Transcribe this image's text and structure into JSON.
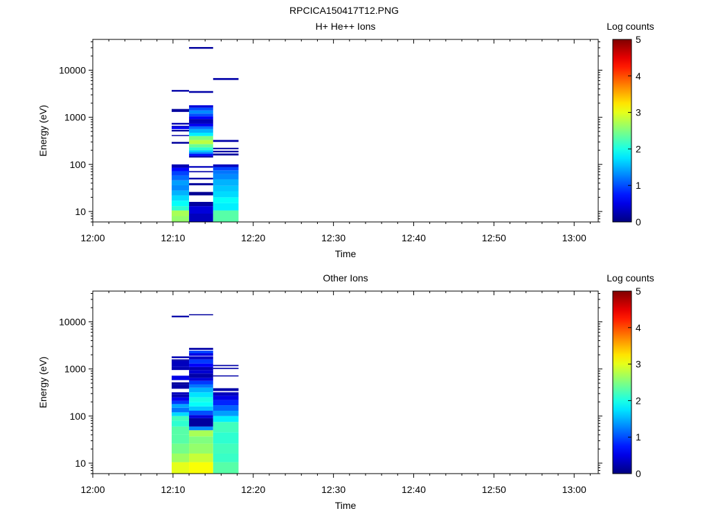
{
  "figure_title": "RPCICA150417T12.PNG",
  "chart_data": [
    {
      "type": "heatmap",
      "title": "H+ He++ Ions",
      "xlabel": "Time",
      "ylabel": "Energy (eV)",
      "x_ticks": [
        "12:00",
        "12:10",
        "12:20",
        "12:30",
        "12:40",
        "12:50",
        "13:00"
      ],
      "xlim": [
        "12:00",
        "13:03"
      ],
      "y_scale": "log",
      "y_ticks": [
        10,
        100,
        1000,
        10000
      ],
      "ylim": [
        6,
        45000
      ],
      "colorbar": {
        "label": "Log counts",
        "range": [
          0,
          5
        ],
        "ticks": [
          0,
          1,
          2,
          3,
          4,
          5
        ]
      },
      "time_bins": [
        {
          "start": "12:09:50",
          "end": "12:12:00",
          "cells": [
            [
              6,
              8,
              2.6
            ],
            [
              8,
              10.5,
              2.7
            ],
            [
              10.5,
              13,
              2.1
            ],
            [
              13,
              17,
              1.9
            ],
            [
              17,
              22,
              1.7
            ],
            [
              22,
              28,
              1.5
            ],
            [
              28,
              36,
              1.3
            ],
            [
              36,
              46,
              1.4
            ],
            [
              46,
              58,
              1.15
            ],
            [
              58,
              72,
              0.95
            ],
            [
              72,
              85,
              0.65
            ],
            [
              85,
              100,
              0.25
            ],
            [
              275,
              300,
              0.15
            ],
            [
              400,
              420,
              0.2
            ],
            [
              500,
              540,
              0.15
            ],
            [
              560,
              620,
              0.6
            ],
            [
              620,
              660,
              0.35
            ],
            [
              700,
              760,
              0.25
            ],
            [
              1300,
              1500,
              0.15
            ],
            [
              3500,
              3800,
              0.2
            ]
          ]
        },
        {
          "start": "12:12:00",
          "end": "12:15:00",
          "cells": [
            [
              6,
              9,
              0.3
            ],
            [
              9,
              13,
              0.45
            ],
            [
              13,
              16,
              0.15
            ],
            [
              22,
              26,
              0.1
            ],
            [
              36,
              40,
              0.15
            ],
            [
              48,
              52,
              0.2
            ],
            [
              68,
              72,
              0.2
            ],
            [
              85,
              92,
              0.3
            ],
            [
              140,
              150,
              0.15
            ],
            [
              150,
              165,
              0.6
            ],
            [
              165,
              180,
              1.15
            ],
            [
              180,
              200,
              1.6
            ],
            [
              200,
              230,
              2.1
            ],
            [
              230,
              270,
              2.4
            ],
            [
              270,
              330,
              2.8
            ],
            [
              330,
              400,
              2.5
            ],
            [
              400,
              470,
              1.8
            ],
            [
              470,
              560,
              1.5
            ],
            [
              560,
              640,
              1.15
            ],
            [
              640,
              730,
              0.55
            ],
            [
              730,
              820,
              0.3
            ],
            [
              820,
              920,
              0.25
            ],
            [
              920,
              1050,
              0.6
            ],
            [
              1050,
              1200,
              1.0
            ],
            [
              1200,
              1400,
              1.3
            ],
            [
              1400,
              1600,
              1.0
            ],
            [
              1600,
              1800,
              0.45
            ],
            [
              3300,
              3600,
              0.2
            ],
            [
              28500,
              31000,
              0.15
            ]
          ]
        },
        {
          "start": "12:15:00",
          "end": "12:18:10",
          "cells": [
            [
              6,
              10.5,
              2.3
            ],
            [
              10.5,
              15,
              1.8
            ],
            [
              15,
              20,
              1.9
            ],
            [
              20,
              27,
              1.7
            ],
            [
              27,
              35,
              1.6
            ],
            [
              35,
              48,
              1.5
            ],
            [
              48,
              62,
              1.3
            ],
            [
              62,
              75,
              1.2
            ],
            [
              75,
              88,
              0.95
            ],
            [
              88,
              100,
              0.3
            ],
            [
              155,
              170,
              0.15
            ],
            [
              180,
              195,
              0.2
            ],
            [
              210,
              225,
              0.15
            ],
            [
              300,
              330,
              0.2
            ],
            [
              6200,
              6800,
              0.2
            ]
          ]
        }
      ]
    },
    {
      "type": "heatmap",
      "title": "Other Ions",
      "xlabel": "Time",
      "ylabel": "Energy (eV)",
      "x_ticks": [
        "12:00",
        "12:10",
        "12:20",
        "12:30",
        "12:40",
        "12:50",
        "13:00"
      ],
      "xlim": [
        "12:00",
        "13:03"
      ],
      "y_scale": "log",
      "y_ticks": [
        10,
        100,
        1000,
        10000
      ],
      "ylim": [
        6,
        45000
      ],
      "colorbar": {
        "label": "Log counts",
        "range": [
          0,
          5
        ],
        "ticks": [
          0,
          1,
          2,
          3,
          4,
          5
        ]
      },
      "time_bins": [
        {
          "start": "12:09:50",
          "end": "12:12:00",
          "cells": [
            [
              6,
              10.5,
              3.0
            ],
            [
              10.5,
              16,
              2.65
            ],
            [
              16,
              26,
              2.45
            ],
            [
              26,
              40,
              2.3
            ],
            [
              40,
              60,
              2.3
            ],
            [
              60,
              80,
              2.1
            ],
            [
              80,
              100,
              2.2
            ],
            [
              100,
              120,
              1.7
            ],
            [
              120,
              150,
              1.2
            ],
            [
              150,
              180,
              1.45
            ],
            [
              180,
              210,
              0.9
            ],
            [
              210,
              250,
              0.55
            ],
            [
              250,
              290,
              0.25
            ],
            [
              290,
              320,
              0.3
            ],
            [
              380,
              460,
              0.2
            ],
            [
              460,
              520,
              0.15
            ],
            [
              580,
              720,
              0.5
            ],
            [
              950,
              1100,
              0.25
            ],
            [
              1100,
              1500,
              0.3
            ],
            [
              1500,
              1600,
              0.2
            ],
            [
              1700,
              1850,
              0.25
            ],
            [
              12500,
              13500,
              0.2
            ]
          ]
        },
        {
          "start": "12:12:00",
          "end": "12:15:00",
          "cells": [
            [
              6,
              10.5,
              3.1
            ],
            [
              10.5,
              16,
              2.85
            ],
            [
              16,
              26,
              2.6
            ],
            [
              26,
              37,
              2.5
            ],
            [
              37,
              50,
              2.7
            ],
            [
              50,
              60,
              1.3
            ],
            [
              60,
              90,
              0.15
            ],
            [
              90,
              105,
              0.45
            ],
            [
              105,
              130,
              1.0
            ],
            [
              130,
              160,
              1.6
            ],
            [
              160,
              200,
              1.9
            ],
            [
              200,
              250,
              2.0
            ],
            [
              250,
              320,
              1.75
            ],
            [
              320,
              400,
              1.5
            ],
            [
              400,
              470,
              1.2
            ],
            [
              470,
              560,
              0.9
            ],
            [
              560,
              650,
              0.45
            ],
            [
              650,
              800,
              0.2
            ],
            [
              800,
              950,
              0.4
            ],
            [
              950,
              1100,
              0.25
            ],
            [
              1100,
              1300,
              0.6
            ],
            [
              1300,
              1600,
              0.9
            ],
            [
              1600,
              1850,
              0.35
            ],
            [
              1900,
              2150,
              0.5
            ],
            [
              2150,
              2450,
              0.95
            ],
            [
              2550,
              2800,
              0.2
            ],
            [
              13800,
              14500,
              0.15
            ]
          ]
        },
        {
          "start": "12:15:00",
          "end": "12:18:10",
          "cells": [
            [
              6,
              10.5,
              2.3
            ],
            [
              10.5,
              16,
              2.15
            ],
            [
              16,
              26,
              2.2
            ],
            [
              26,
              45,
              2.1
            ],
            [
              45,
              75,
              2.2
            ],
            [
              75,
              100,
              1.8
            ],
            [
              100,
              130,
              1.4
            ],
            [
              130,
              170,
              1.1
            ],
            [
              170,
              220,
              0.8
            ],
            [
              220,
              270,
              0.5
            ],
            [
              270,
              320,
              0.3
            ],
            [
              340,
              390,
              0.2
            ],
            [
              700,
              730,
              0.2
            ],
            [
              1000,
              1060,
              0.2
            ],
            [
              1150,
              1220,
              0.2
            ]
          ]
        }
      ]
    }
  ]
}
